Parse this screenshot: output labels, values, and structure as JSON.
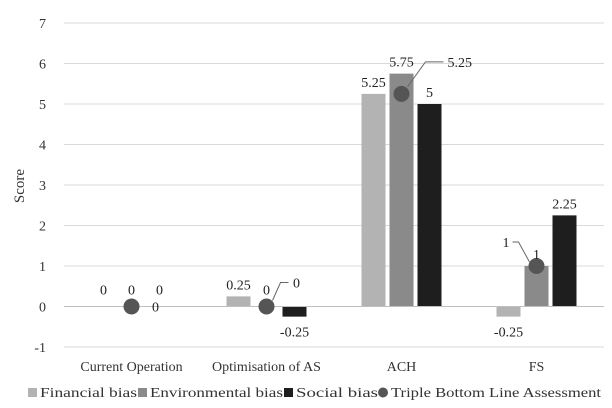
{
  "chart_data": {
    "type": "bar",
    "title": "",
    "xlabel": "",
    "ylabel": "Score",
    "ylim": [
      -1,
      7
    ],
    "yticks": [
      -1,
      0,
      1,
      2,
      3,
      4,
      5,
      6,
      7
    ],
    "grid": true,
    "legend_position": "bottom",
    "categories": [
      "Current Operation",
      "Optimisation of AS",
      "ACH",
      "FS"
    ],
    "series": [
      {
        "name": "Financial bias",
        "kind": "bar",
        "color": "#b3b3b3",
        "values": [
          0,
          0.25,
          5.25,
          -0.25
        ],
        "labels": [
          "0",
          "0.25",
          "5.25",
          "-0.25"
        ]
      },
      {
        "name": "Environmental bias",
        "kind": "bar",
        "color": "#8a8a8a",
        "values": [
          0,
          0,
          5.75,
          1
        ],
        "labels": [
          "0",
          "0",
          "5.75",
          "1"
        ]
      },
      {
        "name": "Social bias",
        "kind": "bar",
        "color": "#1e1e1e",
        "values": [
          0,
          -0.25,
          5,
          2.25
        ],
        "labels": [
          "0",
          "-0.25",
          "5",
          "2.25"
        ]
      },
      {
        "name": "Triple Bottom Line Assessment",
        "kind": "point",
        "color": "#555555",
        "values": [
          0,
          0,
          5.25,
          1
        ],
        "labels": [
          "0",
          "0",
          "5.25",
          "1"
        ]
      }
    ]
  }
}
